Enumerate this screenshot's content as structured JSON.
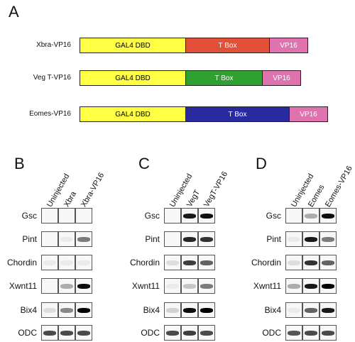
{
  "panel_a": {
    "letter": "A",
    "constructs": [
      {
        "name": "Xbra-VP16",
        "segments": [
          {
            "label": "GAL4  DBD",
            "color": "#ffff44",
            "text": "#000",
            "w": 148
          },
          {
            "label": "T Box",
            "color": "#e2503a",
            "text": "#fff",
            "w": 118
          },
          {
            "label": "VP16",
            "color": "#de73b0",
            "text": "#fff",
            "w": 54
          }
        ]
      },
      {
        "name": "Veg T-VP16",
        "segments": [
          {
            "label": "GAL4  DBD",
            "color": "#ffff44",
            "text": "#000",
            "w": 148
          },
          {
            "label": "T Box",
            "color": "#30a030",
            "text": "#fff",
            "w": 108
          },
          {
            "label": "VP16",
            "color": "#de73b0",
            "text": "#fff",
            "w": 54
          }
        ]
      },
      {
        "name": "Eomes-VP16",
        "segments": [
          {
            "label": "GAL4  DBD",
            "color": "#ffff44",
            "text": "#000",
            "w": 148
          },
          {
            "label": "T Box",
            "color": "#2a2aa0",
            "text": "#fff",
            "w": 146
          },
          {
            "label": "VP16",
            "color": "#de73b0",
            "text": "#fff",
            "w": 54
          }
        ]
      }
    ]
  },
  "row_labels": [
    "Gsc",
    "Pint",
    "Chordin",
    "Xwnt11",
    "Bix4",
    "ODC"
  ],
  "blot_panels": [
    {
      "letter": "B",
      "columns": [
        "Uninjected",
        "Xbra",
        "Xbra-VP16"
      ],
      "bands": [
        [
          0,
          0,
          0
        ],
        [
          0,
          0.05,
          0.5
        ],
        [
          0.05,
          0.05,
          0.05
        ],
        [
          0,
          0.3,
          0.95
        ],
        [
          0.1,
          0.45,
          1
        ],
        [
          0.7,
          0.7,
          0.7
        ]
      ]
    },
    {
      "letter": "C",
      "columns": [
        "Uninjected",
        "VegT",
        "VegT-VP16"
      ],
      "bands": [
        [
          0,
          0.9,
          0.95
        ],
        [
          0,
          0.85,
          0.8
        ],
        [
          0.1,
          0.75,
          0.6
        ],
        [
          0.05,
          0.2,
          0.5
        ],
        [
          0.15,
          0.95,
          1
        ],
        [
          0.7,
          0.75,
          0.7
        ]
      ]
    },
    {
      "letter": "D",
      "columns": [
        "Uninjected",
        "Eomes",
        "Eomes-VP16"
      ],
      "bands": [
        [
          0,
          0.3,
          0.95
        ],
        [
          0.05,
          0.9,
          0.5
        ],
        [
          0.1,
          0.8,
          0.6
        ],
        [
          0.3,
          0.9,
          1
        ],
        [
          0.05,
          0.6,
          0.9
        ],
        [
          0.65,
          0.7,
          0.7
        ]
      ]
    }
  ]
}
